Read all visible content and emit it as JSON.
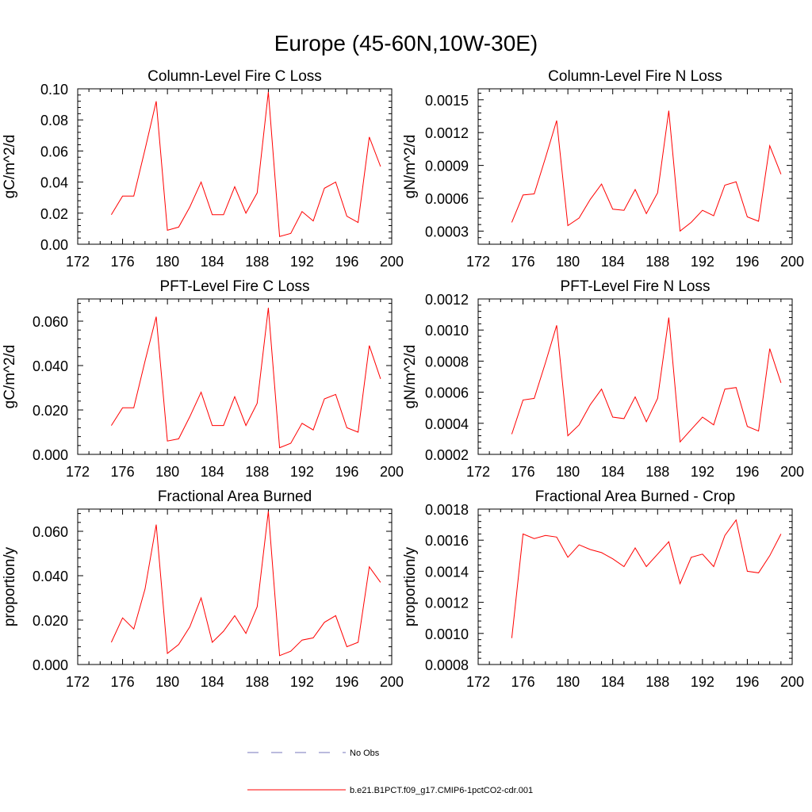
{
  "figure_title": "Europe (45-60N,10W-30E)",
  "legend": {
    "placement": "bottom-center",
    "entries": [
      {
        "label": "No Obs",
        "color": "#7777bb",
        "style": "dashed"
      },
      {
        "label": "b.e21.B1PCT.f09_g17.CMIP6-1pctCO2-cdr.001",
        "color": "#ff0000",
        "style": "solid"
      }
    ]
  },
  "chart_data": [
    {
      "type": "line",
      "title": "Column-Level Fire C Loss",
      "ylabel": "gC/m^2/d",
      "xlim": [
        172,
        200
      ],
      "ylim": [
        0,
        0.1
      ],
      "xticks": [
        172,
        176,
        180,
        184,
        188,
        192,
        196,
        200
      ],
      "xtick_labels": [
        "172",
        "176",
        "180",
        "184",
        "188",
        "192",
        "196",
        "200"
      ],
      "yticks": [
        0,
        0.02,
        0.04,
        0.06,
        0.08,
        0.1
      ],
      "ytick_labels": [
        "0.00",
        "0.02",
        "0.04",
        "0.06",
        "0.08",
        "0.10"
      ],
      "x": [
        175,
        176,
        177,
        178,
        179,
        180,
        181,
        182,
        183,
        184,
        185,
        186,
        187,
        188,
        189,
        190,
        191,
        192,
        193,
        194,
        195,
        196,
        197,
        198,
        199
      ],
      "series": [
        {
          "color": "#ff0000",
          "values": [
            0.019,
            0.031,
            0.031,
            0.061,
            0.092,
            0.009,
            0.011,
            0.024,
            0.04,
            0.019,
            0.019,
            0.037,
            0.02,
            0.033,
            0.098,
            0.005,
            0.007,
            0.021,
            0.015,
            0.036,
            0.04,
            0.018,
            0.014,
            0.069,
            0.05
          ]
        }
      ]
    },
    {
      "type": "line",
      "title": "Column-Level Fire N Loss",
      "ylabel": "gN/m^2/d",
      "xlim": [
        172,
        200
      ],
      "ylim": [
        0.00018,
        0.0016
      ],
      "xticks": [
        172,
        176,
        180,
        184,
        188,
        192,
        196,
        200
      ],
      "xtick_labels": [
        "172",
        "176",
        "180",
        "184",
        "188",
        "192",
        "196",
        "200"
      ],
      "yticks": [
        0.0003,
        0.0006,
        0.0009,
        0.0012,
        0.0015
      ],
      "ytick_labels": [
        "0.0003",
        "0.0006",
        "0.0009",
        "0.0012",
        "0.0015"
      ],
      "x": [
        175,
        176,
        177,
        178,
        179,
        180,
        181,
        182,
        183,
        184,
        185,
        186,
        187,
        188,
        189,
        190,
        191,
        192,
        193,
        194,
        195,
        196,
        197,
        198,
        199
      ],
      "series": [
        {
          "color": "#ff0000",
          "values": [
            0.00038,
            0.00063,
            0.00064,
            0.00097,
            0.00131,
            0.00035,
            0.00042,
            0.00059,
            0.00073,
            0.0005,
            0.00049,
            0.00068,
            0.00046,
            0.00065,
            0.0014,
            0.0003,
            0.00038,
            0.00049,
            0.00044,
            0.00072,
            0.00075,
            0.00043,
            0.00039,
            0.00108,
            0.00082
          ]
        }
      ]
    },
    {
      "type": "line",
      "title": "PFT-Level Fire C Loss",
      "ylabel": "gC/m^2/d",
      "xlim": [
        172,
        200
      ],
      "ylim": [
        0,
        0.07
      ],
      "xticks": [
        172,
        176,
        180,
        184,
        188,
        192,
        196,
        200
      ],
      "xtick_labels": [
        "172",
        "176",
        "180",
        "184",
        "188",
        "192",
        "196",
        "200"
      ],
      "yticks": [
        0,
        0.02,
        0.04,
        0.06
      ],
      "ytick_labels": [
        "0.000",
        "0.020",
        "0.040",
        "0.060"
      ],
      "x": [
        175,
        176,
        177,
        178,
        179,
        180,
        181,
        182,
        183,
        184,
        185,
        186,
        187,
        188,
        189,
        190,
        191,
        192,
        193,
        194,
        195,
        196,
        197,
        198,
        199
      ],
      "series": [
        {
          "color": "#ff0000",
          "values": [
            0.013,
            0.021,
            0.021,
            0.042,
            0.062,
            0.006,
            0.007,
            0.017,
            0.028,
            0.013,
            0.013,
            0.026,
            0.013,
            0.023,
            0.066,
            0.003,
            0.005,
            0.014,
            0.011,
            0.025,
            0.027,
            0.012,
            0.01,
            0.049,
            0.034
          ]
        }
      ]
    },
    {
      "type": "line",
      "title": "PFT-Level Fire N Loss",
      "ylabel": "gN/m^2/d",
      "xlim": [
        172,
        200
      ],
      "ylim": [
        0.0002,
        0.0012
      ],
      "xticks": [
        172,
        176,
        180,
        184,
        188,
        192,
        196,
        200
      ],
      "xtick_labels": [
        "172",
        "176",
        "180",
        "184",
        "188",
        "192",
        "196",
        "200"
      ],
      "yticks": [
        0.0002,
        0.0004,
        0.0006,
        0.0008,
        0.001,
        0.0012
      ],
      "ytick_labels": [
        "0.0002",
        "0.0004",
        "0.0006",
        "0.0008",
        "0.0010",
        "0.0012"
      ],
      "x": [
        175,
        176,
        177,
        178,
        179,
        180,
        181,
        182,
        183,
        184,
        185,
        186,
        187,
        188,
        189,
        190,
        191,
        192,
        193,
        194,
        195,
        196,
        197,
        198,
        199
      ],
      "series": [
        {
          "color": "#ff0000",
          "values": [
            0.00033,
            0.00055,
            0.00056,
            0.00079,
            0.00103,
            0.00032,
            0.00039,
            0.00052,
            0.00062,
            0.00044,
            0.00043,
            0.00057,
            0.00041,
            0.00056,
            0.00108,
            0.00028,
            0.00036,
            0.00044,
            0.00039,
            0.00062,
            0.00063,
            0.00038,
            0.00035,
            0.00088,
            0.00066
          ]
        }
      ]
    },
    {
      "type": "line",
      "title": "Fractional Area Burned",
      "ylabel": "proportion/y",
      "xlim": [
        172,
        200
      ],
      "ylim": [
        0,
        0.07
      ],
      "xticks": [
        172,
        176,
        180,
        184,
        188,
        192,
        196,
        200
      ],
      "xtick_labels": [
        "172",
        "176",
        "180",
        "184",
        "188",
        "192",
        "196",
        "200"
      ],
      "yticks": [
        0,
        0.02,
        0.04,
        0.06
      ],
      "ytick_labels": [
        "0.000",
        "0.020",
        "0.040",
        "0.060"
      ],
      "x": [
        175,
        176,
        177,
        178,
        179,
        180,
        181,
        182,
        183,
        184,
        185,
        186,
        187,
        188,
        189,
        190,
        191,
        192,
        193,
        194,
        195,
        196,
        197,
        198,
        199
      ],
      "series": [
        {
          "color": "#ff0000",
          "values": [
            0.01,
            0.021,
            0.016,
            0.034,
            0.063,
            0.005,
            0.009,
            0.017,
            0.03,
            0.01,
            0.015,
            0.022,
            0.014,
            0.026,
            0.069,
            0.004,
            0.006,
            0.011,
            0.012,
            0.019,
            0.022,
            0.008,
            0.01,
            0.044,
            0.037
          ]
        }
      ]
    },
    {
      "type": "line",
      "title": "Fractional Area Burned - Crop",
      "ylabel": "proportion/y",
      "xlim": [
        172,
        200
      ],
      "ylim": [
        0.0008,
        0.0018
      ],
      "xticks": [
        172,
        176,
        180,
        184,
        188,
        192,
        196,
        200
      ],
      "xtick_labels": [
        "172",
        "176",
        "180",
        "184",
        "188",
        "192",
        "196",
        "200"
      ],
      "yticks": [
        0.0008,
        0.001,
        0.0012,
        0.0014,
        0.0016,
        0.0018
      ],
      "ytick_labels": [
        "0.0008",
        "0.0010",
        "0.0012",
        "0.0014",
        "0.0016",
        "0.0018"
      ],
      "x": [
        175,
        176,
        177,
        178,
        179,
        180,
        181,
        182,
        183,
        184,
        185,
        186,
        187,
        188,
        189,
        190,
        191,
        192,
        193,
        194,
        195,
        196,
        197,
        198,
        199
      ],
      "series": [
        {
          "color": "#ff0000",
          "values": [
            0.00097,
            0.00164,
            0.00161,
            0.00163,
            0.00162,
            0.00149,
            0.00157,
            0.00154,
            0.00152,
            0.00148,
            0.00143,
            0.00155,
            0.00143,
            0.00151,
            0.00159,
            0.00132,
            0.00149,
            0.00151,
            0.00143,
            0.00163,
            0.00173,
            0.0014,
            0.00139,
            0.0015,
            0.00164
          ]
        }
      ]
    }
  ]
}
